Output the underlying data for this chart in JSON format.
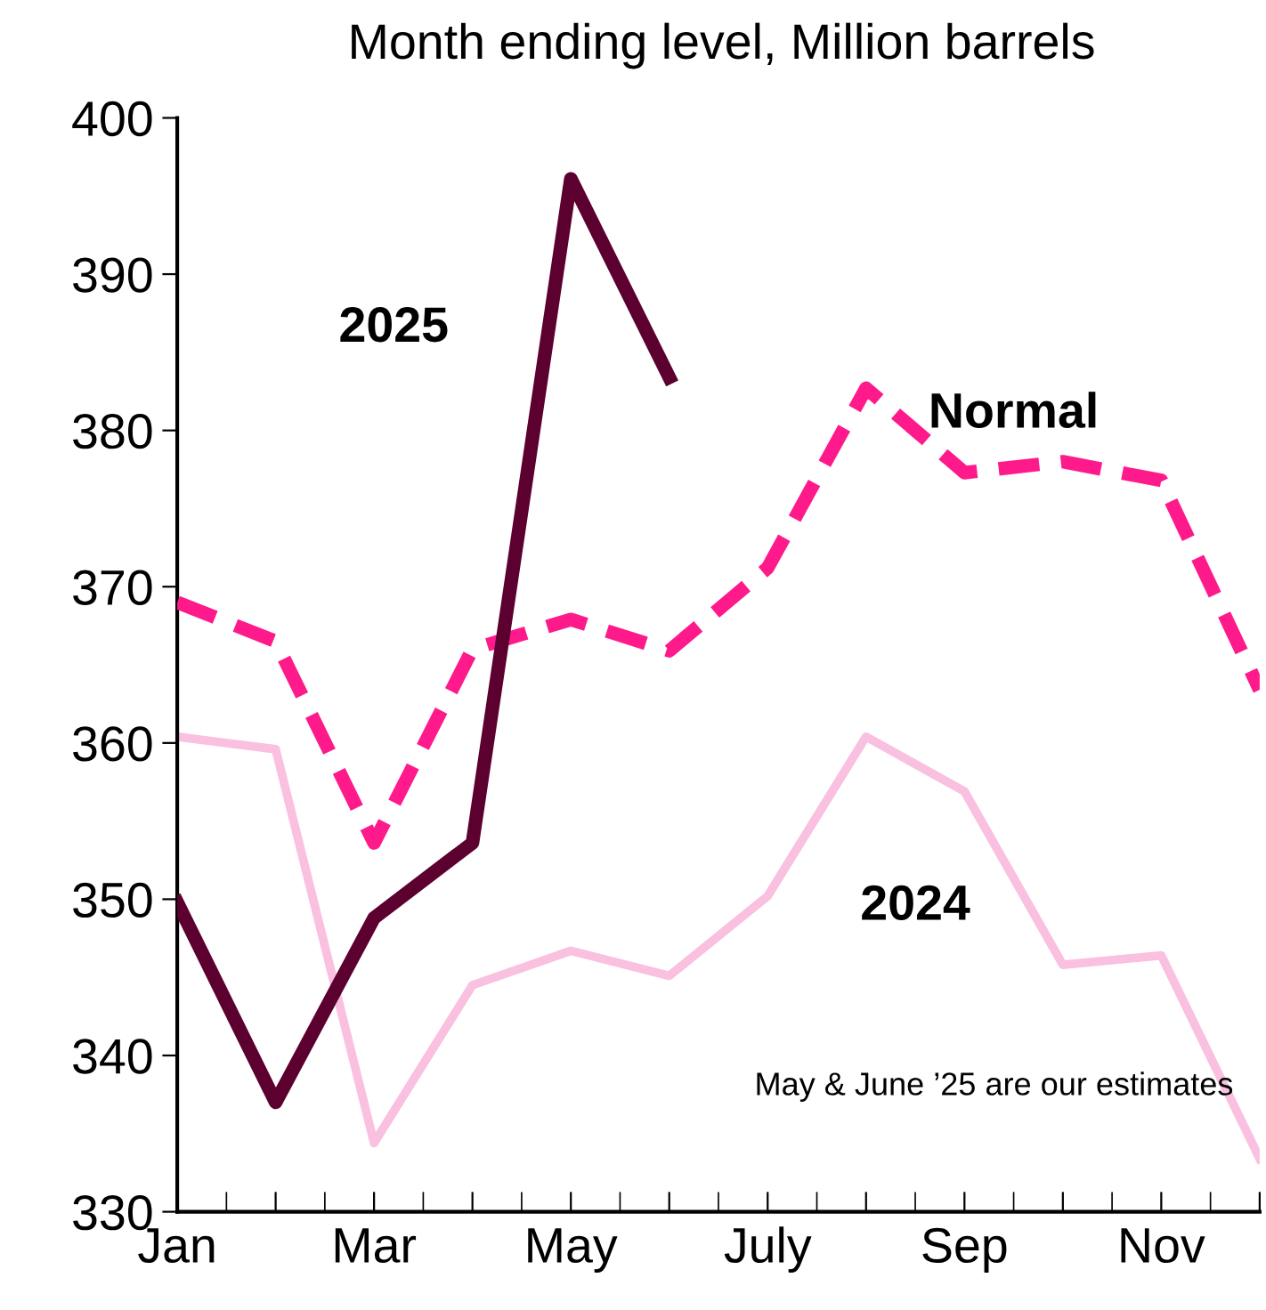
{
  "chart_data": {
    "type": "line",
    "title": "Month ending level, Million barrels",
    "categories": [
      "Jan",
      null,
      "Mar",
      null,
      "May",
      null,
      "July",
      null,
      "Sep",
      null,
      "Nov",
      null
    ],
    "series": [
      {
        "name": "2024",
        "color": "#f9c0e0",
        "line_style": "solid",
        "values": [
          360.4,
          359.6,
          334.4,
          344.5,
          346.7,
          345.1,
          350.2,
          360.4,
          356.9,
          345.8,
          346.4,
          333.4
        ]
      },
      {
        "name": "Normal",
        "color": "#ff1a8c",
        "line_style": "dashed",
        "values": [
          369.0,
          366.5,
          353.6,
          366.0,
          367.9,
          365.9,
          371.2,
          382.7,
          377.3,
          378.0,
          376.8,
          363.4
        ]
      },
      {
        "name": "2025",
        "color": "#5c0030",
        "line_style": "solid",
        "values": [
          349.8,
          337.0,
          348.8,
          353.6,
          396.1,
          383.4,
          null,
          null,
          null,
          null,
          null,
          null
        ]
      }
    ],
    "ylim": [
      330,
      400
    ],
    "yticks": [
      330,
      340,
      350,
      360,
      370,
      380,
      390,
      400
    ],
    "grid": false,
    "legend": false,
    "marker": "none",
    "annotations": [
      "May & June ’25 are our estimates"
    ]
  }
}
